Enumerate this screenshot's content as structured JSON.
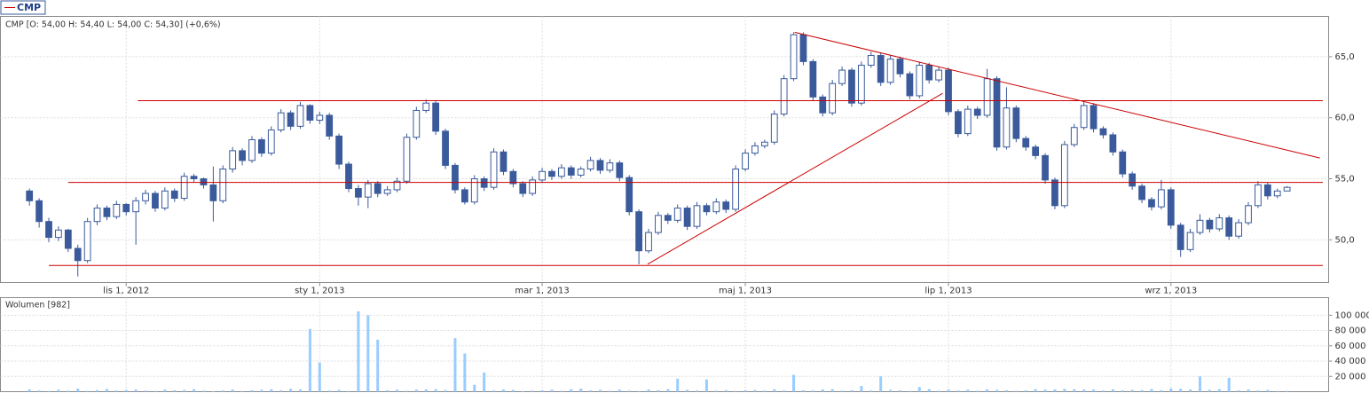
{
  "chart_data": {
    "type": "candlestick",
    "legend_label": "CMP",
    "ohlc_label": "CMP [O: 54,00  H: 54,40  L: 54,00  C: 54,30] (+0,6%)",
    "volume_label": "Wolumen [982]",
    "candle_color": "#3a5a9b",
    "volume_color": "#99ccff",
    "trendline_color": "#cc0000",
    "grid": true,
    "xlim": [
      -3.0,
      134.3
    ],
    "ylim": [
      46.5,
      68.3
    ],
    "yticks": [
      {
        "value": 50,
        "label": "50,0"
      },
      {
        "value": 55,
        "label": "55,0"
      },
      {
        "value": 60,
        "label": "60,0"
      },
      {
        "value": 65,
        "label": "65,0"
      }
    ],
    "y2lim": [
      0,
      123000
    ],
    "y2ticks": [
      {
        "value": 20000,
        "label": "20 000"
      },
      {
        "value": 40000,
        "label": "40 000"
      },
      {
        "value": 60000,
        "label": "60 000"
      },
      {
        "value": 80000,
        "label": "80 000"
      },
      {
        "value": 100000,
        "label": "100 000"
      }
    ],
    "categories": [
      null,
      null,
      null,
      null,
      null,
      null,
      null,
      null,
      null,
      null,
      "lis 1, 2012",
      null,
      null,
      null,
      null,
      null,
      null,
      null,
      null,
      null,
      null,
      null,
      null,
      null,
      null,
      null,
      null,
      null,
      null,
      null,
      "sty 1, 2013",
      null,
      null,
      null,
      null,
      null,
      null,
      null,
      null,
      null,
      null,
      null,
      null,
      null,
      null,
      null,
      null,
      null,
      null,
      null,
      null,
      null,
      null,
      "mar 1, 2013",
      null,
      null,
      null,
      null,
      null,
      null,
      null,
      null,
      null,
      null,
      null,
      null,
      null,
      null,
      null,
      null,
      null,
      null,
      null,
      null,
      "maj 1, 2013",
      null,
      null,
      null,
      null,
      null,
      null,
      null,
      null,
      null,
      null,
      null,
      null,
      null,
      null,
      null,
      null,
      null,
      null,
      null,
      null,
      "lip 1, 2013",
      null,
      null,
      null,
      null,
      null,
      null,
      null,
      null,
      null,
      null,
      null,
      null,
      null,
      null,
      null,
      null,
      null,
      null,
      null,
      null,
      null,
      null,
      "wrz 1, 2013",
      null,
      null,
      null,
      null,
      null,
      null,
      null,
      null,
      null,
      null,
      null,
      null
    ],
    "ohlc": [
      [
        54.0,
        54.2,
        52.8,
        53.2
      ],
      [
        53.2,
        53.4,
        51.0,
        51.5
      ],
      [
        51.5,
        51.8,
        49.8,
        50.2
      ],
      [
        50.2,
        51.1,
        49.9,
        50.8
      ],
      [
        50.8,
        50.9,
        49.0,
        49.3
      ],
      [
        49.3,
        49.6,
        47.0,
        48.3
      ],
      [
        48.3,
        51.8,
        48.1,
        51.5
      ],
      [
        51.5,
        52.9,
        51.2,
        52.6
      ],
      [
        52.6,
        52.8,
        51.6,
        51.9
      ],
      [
        51.9,
        53.2,
        51.7,
        52.9
      ],
      [
        52.9,
        53.0,
        52.0,
        52.3
      ],
      [
        52.3,
        53.5,
        49.6,
        53.2
      ],
      [
        53.2,
        54.1,
        52.9,
        53.8
      ],
      [
        53.8,
        54.0,
        52.3,
        52.6
      ],
      [
        52.6,
        54.3,
        52.4,
        54.0
      ],
      [
        54.0,
        54.2,
        53.1,
        53.4
      ],
      [
        53.4,
        55.5,
        53.2,
        55.2
      ],
      [
        55.2,
        55.4,
        54.7,
        55.0
      ],
      [
        55.0,
        55.1,
        54.2,
        54.5
      ],
      [
        54.5,
        56.0,
        51.5,
        53.2
      ],
      [
        53.2,
        56.1,
        53.0,
        55.8
      ],
      [
        55.8,
        57.6,
        55.5,
        57.3
      ],
      [
        57.3,
        57.5,
        56.1,
        56.5
      ],
      [
        56.5,
        58.5,
        56.3,
        58.2
      ],
      [
        58.2,
        58.4,
        56.8,
        57.1
      ],
      [
        57.1,
        59.3,
        56.9,
        59.0
      ],
      [
        59.0,
        60.7,
        58.8,
        60.4
      ],
      [
        60.4,
        60.6,
        59.0,
        59.3
      ],
      [
        59.3,
        61.3,
        59.1,
        61.0
      ],
      [
        61.0,
        61.1,
        59.5,
        59.8
      ],
      [
        59.8,
        60.5,
        59.5,
        60.2
      ],
      [
        60.2,
        60.4,
        58.2,
        58.5
      ],
      [
        58.5,
        58.7,
        55.8,
        56.2
      ],
      [
        56.2,
        56.4,
        53.9,
        54.2
      ],
      [
        54.2,
        54.5,
        52.8,
        53.5
      ],
      [
        53.5,
        54.9,
        52.6,
        54.6
      ],
      [
        54.6,
        54.8,
        53.5,
        53.8
      ],
      [
        53.8,
        54.4,
        53.6,
        54.1
      ],
      [
        54.1,
        55.1,
        53.9,
        54.8
      ],
      [
        54.8,
        58.7,
        54.6,
        58.4
      ],
      [
        58.4,
        60.9,
        58.2,
        60.6
      ],
      [
        60.6,
        61.5,
        60.4,
        61.2
      ],
      [
        61.2,
        61.4,
        58.6,
        58.9
      ],
      [
        58.9,
        59.1,
        55.8,
        56.1
      ],
      [
        56.1,
        56.3,
        53.8,
        54.1
      ],
      [
        54.1,
        54.3,
        52.9,
        53.1
      ],
      [
        53.1,
        55.3,
        52.9,
        55.0
      ],
      [
        55.0,
        55.2,
        54.0,
        54.3
      ],
      [
        54.3,
        57.5,
        54.1,
        57.2
      ],
      [
        57.2,
        57.4,
        55.3,
        55.6
      ],
      [
        55.6,
        55.8,
        54.3,
        54.6
      ],
      [
        54.6,
        54.8,
        53.5,
        53.8
      ],
      [
        53.8,
        55.2,
        53.6,
        54.9
      ],
      [
        54.9,
        55.9,
        54.7,
        55.6
      ],
      [
        55.6,
        55.8,
        54.9,
        55.2
      ],
      [
        55.2,
        56.2,
        55.0,
        55.9
      ],
      [
        55.9,
        56.1,
        55.0,
        55.3
      ],
      [
        55.3,
        56.0,
        55.1,
        55.8
      ],
      [
        55.8,
        56.8,
        55.6,
        56.5
      ],
      [
        56.5,
        56.7,
        55.4,
        55.7
      ],
      [
        55.7,
        56.6,
        55.5,
        56.3
      ],
      [
        56.3,
        56.5,
        54.8,
        55.1
      ],
      [
        55.1,
        55.3,
        52.0,
        52.3
      ],
      [
        52.3,
        52.5,
        48.0,
        49.1
      ],
      [
        49.1,
        50.9,
        48.9,
        50.6
      ],
      [
        50.6,
        52.3,
        50.4,
        52.0
      ],
      [
        52.0,
        52.2,
        51.3,
        51.6
      ],
      [
        51.6,
        52.9,
        51.4,
        52.6
      ],
      [
        52.6,
        52.8,
        50.8,
        51.1
      ],
      [
        51.1,
        53.1,
        50.9,
        52.8
      ],
      [
        52.8,
        53.0,
        52.0,
        52.3
      ],
      [
        52.3,
        53.4,
        52.1,
        53.1
      ],
      [
        53.1,
        53.3,
        52.2,
        52.5
      ],
      [
        52.5,
        56.1,
        52.3,
        55.8
      ],
      [
        55.8,
        57.4,
        55.6,
        57.1
      ],
      [
        57.1,
        58.0,
        56.9,
        57.7
      ],
      [
        57.7,
        58.2,
        57.5,
        58.0
      ],
      [
        58.0,
        60.6,
        57.8,
        60.3
      ],
      [
        60.3,
        63.5,
        60.1,
        63.2
      ],
      [
        63.2,
        67.0,
        63.0,
        66.8
      ],
      [
        66.8,
        67.0,
        64.3,
        64.6
      ],
      [
        64.6,
        64.8,
        61.4,
        61.7
      ],
      [
        61.7,
        61.9,
        60.1,
        60.4
      ],
      [
        60.4,
        63.1,
        60.2,
        62.8
      ],
      [
        62.8,
        64.2,
        62.6,
        63.9
      ],
      [
        63.9,
        64.1,
        60.9,
        61.2
      ],
      [
        61.2,
        64.6,
        61.0,
        64.3
      ],
      [
        64.3,
        65.4,
        64.1,
        65.1
      ],
      [
        65.1,
        65.3,
        62.6,
        62.9
      ],
      [
        62.9,
        65.1,
        62.7,
        64.8
      ],
      [
        64.8,
        65.0,
        63.3,
        63.6
      ],
      [
        63.6,
        63.8,
        61.5,
        61.8
      ],
      [
        61.8,
        64.6,
        61.6,
        64.3
      ],
      [
        64.3,
        64.5,
        62.8,
        63.1
      ],
      [
        63.1,
        64.2,
        62.9,
        63.9
      ],
      [
        63.9,
        64.1,
        60.2,
        60.5
      ],
      [
        60.5,
        60.7,
        58.4,
        58.7
      ],
      [
        58.7,
        61.0,
        58.5,
        60.7
      ],
      [
        60.7,
        60.9,
        59.9,
        60.2
      ],
      [
        60.2,
        64.0,
        60.0,
        63.2
      ],
      [
        63.2,
        63.4,
        57.3,
        57.6
      ],
      [
        57.6,
        62.5,
        57.4,
        60.8
      ],
      [
        60.8,
        61.0,
        58.0,
        58.3
      ],
      [
        58.3,
        58.5,
        57.3,
        57.6
      ],
      [
        57.6,
        57.8,
        56.6,
        56.9
      ],
      [
        56.9,
        57.1,
        54.6,
        54.9
      ],
      [
        54.9,
        55.1,
        52.5,
        52.8
      ],
      [
        52.8,
        58.1,
        52.6,
        57.8
      ],
      [
        57.8,
        59.5,
        57.6,
        59.2
      ],
      [
        59.2,
        61.3,
        59.0,
        61.0
      ],
      [
        61.0,
        61.2,
        58.8,
        59.1
      ],
      [
        59.1,
        59.3,
        58.3,
        58.6
      ],
      [
        58.6,
        58.8,
        56.9,
        57.2
      ],
      [
        57.2,
        57.4,
        55.1,
        55.4
      ],
      [
        55.4,
        55.6,
        54.1,
        54.4
      ],
      [
        54.4,
        54.6,
        53.0,
        53.3
      ],
      [
        53.3,
        53.5,
        52.4,
        52.7
      ],
      [
        52.7,
        54.9,
        52.5,
        54.1
      ],
      [
        54.1,
        54.3,
        50.9,
        51.2
      ],
      [
        51.2,
        51.4,
        48.6,
        49.2
      ],
      [
        49.2,
        50.9,
        49.0,
        50.6
      ],
      [
        50.6,
        52.1,
        50.4,
        51.6
      ],
      [
        51.6,
        51.8,
        50.6,
        50.9
      ],
      [
        50.9,
        52.1,
        50.7,
        51.8
      ],
      [
        51.8,
        52.0,
        50.0,
        50.3
      ],
      [
        50.3,
        51.7,
        50.1,
        51.4
      ],
      [
        51.4,
        53.1,
        51.2,
        52.8
      ],
      [
        52.8,
        54.8,
        52.6,
        54.5
      ],
      [
        54.5,
        54.7,
        53.3,
        53.6
      ],
      [
        53.6,
        54.2,
        53.4,
        54.0
      ],
      [
        54.0,
        54.4,
        54.0,
        54.3
      ]
    ],
    "volume": [
      3000,
      1500,
      800,
      2500,
      1200,
      4000,
      1000,
      2000,
      3500,
      1500,
      2200,
      2800,
      1300,
      900,
      2600,
      1800,
      2100,
      3300,
      1200,
      600,
      1500,
      2700,
      800,
      1900,
      2400,
      3100,
      1600,
      3800,
      2900,
      82000,
      38000,
      1400,
      2300,
      900,
      105000,
      100000,
      68000,
      1800,
      2500,
      1100,
      2600,
      3000,
      3300,
      2000,
      70000,
      50000,
      9000,
      25000,
      1500,
      2900,
      2200,
      800,
      1300,
      1700,
      2500,
      1100,
      3200,
      4000,
      1600,
      2300,
      1200,
      2700,
      1400,
      800,
      2900,
      1900,
      3300,
      17000,
      2400,
      1500,
      16000,
      1300,
      2000,
      900,
      1800,
      2100,
      1300,
      3100,
      1600,
      22000,
      1900,
      1400,
      2900,
      3300,
      1200,
      2000,
      7500,
      1400,
      20000,
      2300,
      1700,
      900,
      6000,
      3400,
      1100,
      2800,
      1500,
      2600,
      1200,
      3000,
      2200,
      1900,
      1000,
      1600,
      3300,
      2500,
      2900,
      3600,
      3200,
      2800,
      2700,
      1400,
      3100,
      1700,
      2400,
      2000,
      3500,
      1800,
      4200,
      3800,
      2900,
      20000,
      2400,
      3300,
      18000,
      1700,
      2800,
      1500,
      2200,
      900,
      982
    ],
    "trendlines": [
      {
        "x": [
          11.2,
          133.7
        ],
        "y": [
          61.4,
          61.4
        ]
      },
      {
        "x": [
          4.0,
          133.7
        ],
        "y": [
          54.7,
          54.7
        ]
      },
      {
        "x": [
          2.0,
          133.7
        ],
        "y": [
          47.9,
          47.9
        ]
      },
      {
        "x": [
          63.9,
          94.4
        ],
        "y": [
          48.0,
          62.0
        ]
      },
      {
        "x": [
          79.1,
          133.4
        ],
        "y": [
          67.0,
          56.7
        ]
      }
    ]
  }
}
